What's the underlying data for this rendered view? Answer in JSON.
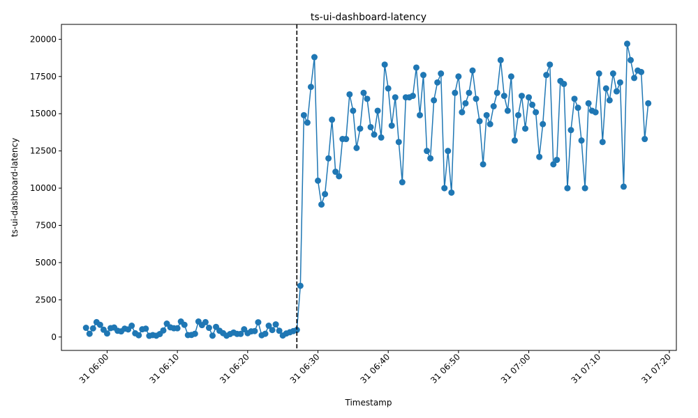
{
  "chart_data": {
    "type": "line",
    "title": "ts-ui-dashboard-latency",
    "xlabel": "Timestamp",
    "ylabel": "ts-ui-dashboard-latency",
    "x_start": "31 05:57",
    "x_step_seconds": 30,
    "xlim": [
      "31 05:53:30",
      "31 07:21:00"
    ],
    "ylim": [
      -900,
      21000
    ],
    "yticks": [
      0,
      2500,
      5000,
      7500,
      10000,
      12500,
      15000,
      17500,
      20000
    ],
    "xticks": [
      "31 06:00",
      "31 06:10",
      "31 06:20",
      "31 06:30",
      "31 06:40",
      "31 06:50",
      "31 07:00",
      "31 07:10",
      "31 07:20"
    ],
    "marker": "circle",
    "line_color": "#1f77b4",
    "grid": false,
    "vline": {
      "x": "31 06:27",
      "style": "dashed",
      "color": "#000000"
    },
    "series": [
      {
        "values": [
          620,
          220,
          580,
          1000,
          820,
          490,
          240,
          600,
          640,
          420,
          380,
          560,
          510,
          760,
          250,
          120,
          520,
          560,
          80,
          130,
          90,
          200,
          440,
          900,
          650,
          590,
          590,
          1040,
          820,
          130,
          140,
          220,
          1040,
          800,
          1000,
          620,
          90,
          680,
          420,
          260,
          90,
          200,
          300,
          210,
          210,
          520,
          260,
          380,
          400,
          990,
          120,
          220,
          760,
          470,
          850,
          420,
          100,
          240,
          320,
          400,
          480,
          3440,
          14900,
          14400,
          16800,
          18800,
          10500,
          8900,
          9600,
          12000,
          14600,
          11100,
          10800,
          13300,
          13300,
          16300,
          15200,
          12700,
          14000,
          16400,
          16000,
          14100,
          13600,
          15200,
          13400,
          18300,
          16700,
          14200,
          16100,
          13100,
          10400,
          16100,
          16100,
          16200,
          18100,
          14900,
          17600,
          12500,
          12000,
          15900,
          17100,
          17700,
          10000,
          12500,
          9700,
          16400,
          17500,
          15100,
          15700,
          16400,
          17900,
          16000,
          14500,
          11600,
          14900,
          14300,
          15500,
          16400,
          18600,
          16200,
          15200,
          17500,
          13200,
          14900,
          16200,
          14000,
          16100,
          15600,
          15100,
          12100,
          14300,
          17600,
          18300,
          11600,
          11900,
          17200,
          17000,
          10000,
          13900,
          16000,
          15400,
          13200,
          10000,
          15700,
          15200,
          15100,
          17700,
          13100,
          16700,
          15900,
          17700,
          16500,
          17100,
          10100,
          19700,
          18600,
          17400,
          17900,
          17800,
          13300,
          15700
        ]
      }
    ]
  }
}
